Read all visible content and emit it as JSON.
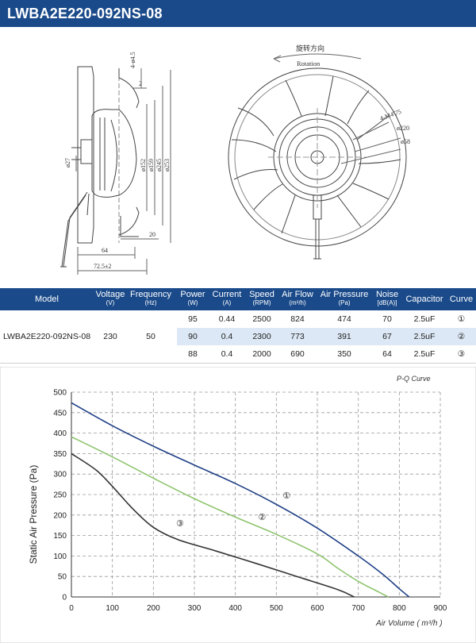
{
  "title": "LWBA2E220-092NS-08",
  "drawing": {
    "side": {
      "hole_label": "4-ø4.5",
      "dim_2": "2",
      "dim_27": "ø27",
      "dim_152": "ø152",
      "dim_159": "ø159",
      "dim_245": "ø245",
      "dim_253": "ø253",
      "dim_20": "20",
      "dim_64": "64",
      "dim_72": "72.5±2"
    },
    "front": {
      "rotation_cn": "旋转方向",
      "rotation_en": "Rotation",
      "m4_label": "4-M4▽5",
      "dim_220": "ø220",
      "dim_58": "ø58"
    }
  },
  "spec_table": {
    "headers": [
      {
        "key": "model",
        "label": "Model",
        "unit": ""
      },
      {
        "key": "voltage",
        "label": "Voltage",
        "unit": "(V)"
      },
      {
        "key": "frequency",
        "label": "Frequency",
        "unit": "(Hz)"
      },
      {
        "key": "power",
        "label": "Power",
        "unit": "(W)"
      },
      {
        "key": "current",
        "label": "Current",
        "unit": "(A)"
      },
      {
        "key": "speed",
        "label": "Speed",
        "unit": "(RPM)"
      },
      {
        "key": "airflow",
        "label": "Air Flow",
        "unit": "(m³/h)"
      },
      {
        "key": "pressure",
        "label": "Air Pressure",
        "unit": "(Pa)"
      },
      {
        "key": "noise",
        "label": "Noise",
        "unit": "[dB(A)]"
      },
      {
        "key": "capacitor",
        "label": "Capacitor",
        "unit": ""
      },
      {
        "key": "curve",
        "label": "Curve",
        "unit": ""
      }
    ],
    "model": "LWBA2E220-092NS-08",
    "voltage": "230",
    "frequency": "50",
    "rows": [
      {
        "power": "95",
        "current": "0.44",
        "speed": "2500",
        "airflow": "824",
        "pressure": "474",
        "noise": "70",
        "capacitor": "2.5uF",
        "curve": "①"
      },
      {
        "power": "90",
        "current": "0.4",
        "speed": "2300",
        "airflow": "773",
        "pressure": "391",
        "noise": "67",
        "capacitor": "2.5uF",
        "curve": "②"
      },
      {
        "power": "88",
        "current": "0.4",
        "speed": "2000",
        "airflow": "690",
        "pressure": "350",
        "noise": "64",
        "capacitor": "2.5uF",
        "curve": "③"
      }
    ]
  },
  "chart_data": {
    "type": "line",
    "title": "P-Q Curve",
    "xlabel": "Air Volume ( m³/h )",
    "ylabel": "Static Air Pressure  (Pa)",
    "xlim": [
      0,
      900
    ],
    "ylim": [
      0,
      500
    ],
    "xticks": [
      "0",
      "100",
      "200",
      "300",
      "400",
      "500",
      "600",
      "700",
      "800",
      "900"
    ],
    "yticks": [
      "0",
      "50",
      "100",
      "150",
      "200",
      "250",
      "300",
      "350",
      "400",
      "450",
      "500"
    ],
    "grid": true,
    "series": [
      {
        "name": "①",
        "color": "#1f3f86",
        "x": [
          0,
          100,
          200,
          300,
          400,
          500,
          600,
          700,
          760,
          800,
          824
        ],
        "y": [
          474,
          418,
          368,
          322,
          277,
          226,
          168,
          100,
          55,
          20,
          0
        ]
      },
      {
        "name": "②",
        "color": "#8ec46e",
        "x": [
          0,
          100,
          200,
          300,
          400,
          500,
          600,
          650,
          700,
          750,
          773
        ],
        "y": [
          391,
          342,
          290,
          240,
          195,
          153,
          105,
          70,
          38,
          12,
          0
        ]
      },
      {
        "name": "③",
        "color": "#333333",
        "x": [
          0,
          60,
          100,
          150,
          200,
          260,
          350,
          450,
          550,
          650,
          690
        ],
        "y": [
          350,
          310,
          270,
          215,
          170,
          140,
          113,
          82,
          50,
          18,
          0
        ]
      }
    ],
    "annotations": [
      {
        "text": "①",
        "x": 525,
        "y": 240
      },
      {
        "text": "②",
        "x": 465,
        "y": 188
      },
      {
        "text": "③",
        "x": 265,
        "y": 172
      }
    ]
  }
}
